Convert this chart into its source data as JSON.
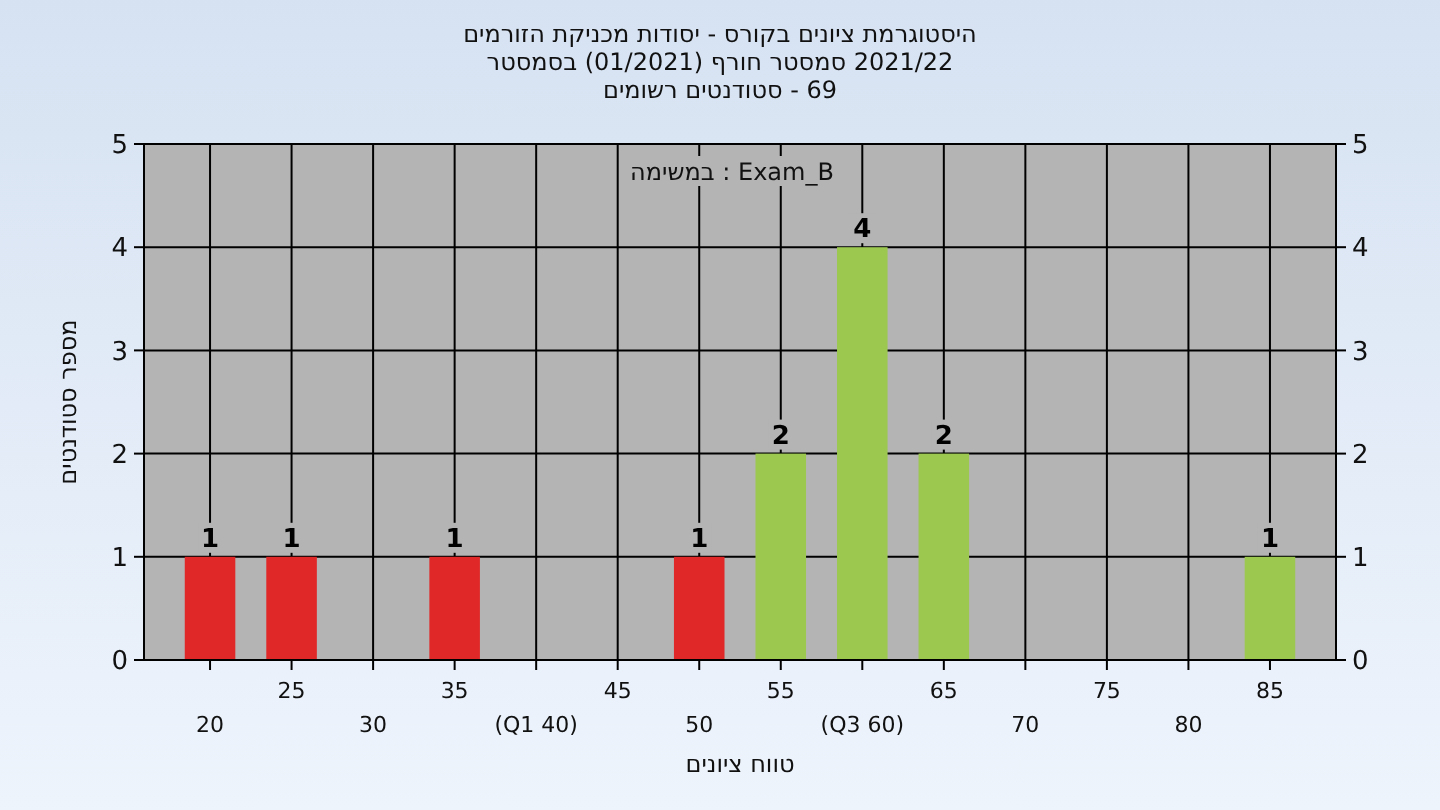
{
  "chart_data": {
    "type": "bar",
    "title": "היסטוגרמת ציונים בקורס - יסודות מכניקת הזורמים",
    "subtitle": "2021/22 סמסטר חורף  (01/2021)  בסמסטר\n69 - סטודנטים רשומים",
    "xlabel": "טווח ציונים",
    "ylabel": "מספר סטודנטים",
    "annotations": [
      "Exam_B : במשימה"
    ],
    "categories": [
      "20",
      "25",
      "30",
      "35",
      "(Q1 40)",
      "45",
      "50",
      "55",
      "(Q3 60)",
      "65",
      "70",
      "75",
      "80",
      "85"
    ],
    "values": [
      1,
      1,
      0,
      1,
      0,
      0,
      1,
      2,
      4,
      2,
      0,
      0,
      0,
      1
    ],
    "colors": [
      "#e02828",
      "#e02828",
      "#e02828",
      "#e02828",
      "#e02828",
      "#e02828",
      "#e02828",
      "#9cc850",
      "#9cc850",
      "#9cc850",
      "#9cc850",
      "#9cc850",
      "#9cc850",
      "#9cc850"
    ],
    "value_labels": [
      "1",
      "1",
      null,
      "1",
      null,
      null,
      "1",
      "2",
      "4",
      "2",
      null,
      null,
      null,
      "1"
    ],
    "ylim": [
      0,
      5
    ],
    "yticks": [
      0,
      1,
      2,
      3,
      4,
      5
    ],
    "y2lim": [
      0,
      5
    ],
    "y2ticks": [
      0,
      1,
      2,
      3,
      4,
      5
    ],
    "grid": true
  }
}
